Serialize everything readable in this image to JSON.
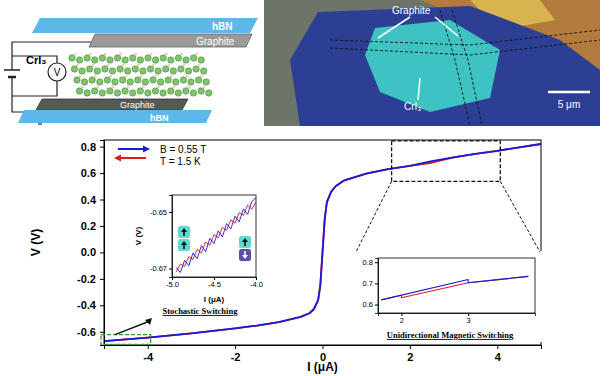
{
  "schematic": {
    "top_layer": "hBN",
    "top_electrode": "Graphite",
    "crystal": "CrI₃",
    "bottom_electrode": "Graphite",
    "bottom_layer": "hBN",
    "meter": "V"
  },
  "micrograph": {
    "graphite_label": "Graphite",
    "crystal_label": "CrI₃",
    "scale_bar": "5 μm"
  },
  "chart_data": [
    {
      "type": "line",
      "x_label": "I (μA)",
      "y_label": "V (V)",
      "xlim": [
        -5,
        5
      ],
      "ylim": [
        -0.7,
        0.85
      ],
      "xticks": [
        -4,
        -2,
        0,
        2,
        4
      ],
      "yticks": [
        -0.6,
        -0.4,
        -0.2,
        {
          "value": 0,
          "label": "0.0"
        },
        0.2,
        0.4,
        0.6,
        0.8
      ],
      "legend": "upper left",
      "annotations": [
        "B = 0.55 T",
        "T = 1.5 K"
      ],
      "x": [
        -5,
        -4,
        -3,
        -2,
        -1.5,
        -1,
        -0.5,
        -0.3,
        -0.2,
        -0.1,
        -0.05,
        0,
        0.05,
        0.1,
        0.2,
        0.3,
        0.5,
        1,
        1.5,
        2,
        2.5,
        3,
        3.5,
        4,
        4.5,
        5
      ],
      "series": [
        {
          "color": "#1a1adb",
          "marker": "arrow-right",
          "values": [
            -0.67,
            -0.644,
            -0.612,
            -0.575,
            -0.553,
            -0.527,
            -0.487,
            -0.46,
            -0.43,
            -0.36,
            -0.25,
            0,
            0.25,
            0.38,
            0.46,
            0.5,
            0.545,
            0.595,
            0.63,
            0.655,
            0.69,
            0.718,
            0.745,
            0.768,
            0.795,
            0.82
          ]
        },
        {
          "color": "#e01a1a",
          "marker": "arrow-left",
          "values": [
            -0.67,
            -0.644,
            -0.612,
            -0.575,
            -0.553,
            -0.527,
            -0.487,
            -0.46,
            -0.43,
            -0.36,
            -0.25,
            0,
            0.25,
            0.38,
            0.46,
            0.5,
            0.545,
            0.595,
            0.63,
            0.655,
            0.678,
            0.718,
            0.745,
            0.768,
            0.795,
            0.82
          ]
        }
      ]
    },
    {
      "type": "line",
      "title": "Stochastic Switching",
      "x_label": "I (μA)",
      "y_label": "V (V)",
      "xlim": [
        -5,
        -4
      ],
      "ylim": [
        -0.673,
        -0.644
      ],
      "xticks": [
        {
          "value": -5,
          "label": "-5.0"
        },
        -4.5,
        {
          "value": -4,
          "label": "-4.0"
        }
      ],
      "yticks": [
        -0.67,
        -0.65
      ],
      "x": [
        -4.95,
        -4.9,
        -4.85,
        -4.8,
        -4.75,
        -4.7,
        -4.65,
        -4.6,
        -4.55,
        -4.5,
        -4.45,
        -4.4,
        -4.35,
        -4.3,
        -4.25,
        -4.2,
        -4.15,
        -4.1,
        -4.05,
        -4.0
      ],
      "series": [
        {
          "color": "#1a1adb",
          "values": [
            -0.6697,
            -0.6714,
            -0.6671,
            -0.669,
            -0.6645,
            -0.6665,
            -0.6619,
            -0.664,
            -0.6593,
            -0.6612,
            -0.6567,
            -0.6588,
            -0.6541,
            -0.656,
            -0.6515,
            -0.6535,
            -0.6489,
            -0.6508,
            -0.6463,
            -0.645
          ]
        },
        {
          "color": "#e01a1a",
          "values": [
            -0.6712,
            -0.6684,
            -0.6693,
            -0.6658,
            -0.6668,
            -0.6632,
            -0.6645,
            -0.6606,
            -0.6618,
            -0.658,
            -0.6592,
            -0.6554,
            -0.6565,
            -0.6528,
            -0.654,
            -0.6502,
            -0.6512,
            -0.6476,
            -0.649,
            -0.6465
          ]
        }
      ]
    },
    {
      "type": "line",
      "title": "Unidirectional Magnetic Switching",
      "xlim": [
        1.65,
        4
      ],
      "ylim": [
        0.56,
        0.82
      ],
      "xticks": [
        2,
        3
      ],
      "yticks": [
        0.6,
        0.7,
        0.8
      ],
      "series": [
        {
          "color": "#1a1adb",
          "x": [
            1.7,
            3.0,
            3.0,
            3.9
          ],
          "values": [
            0.622,
            0.718,
            0.703,
            0.733
          ]
        },
        {
          "color": "#e01a1a",
          "x": [
            3.9,
            3.0,
            2.0,
            2.0,
            1.7
          ],
          "values": [
            0.733,
            0.703,
            0.632,
            0.644,
            0.622
          ]
        }
      ]
    }
  ]
}
